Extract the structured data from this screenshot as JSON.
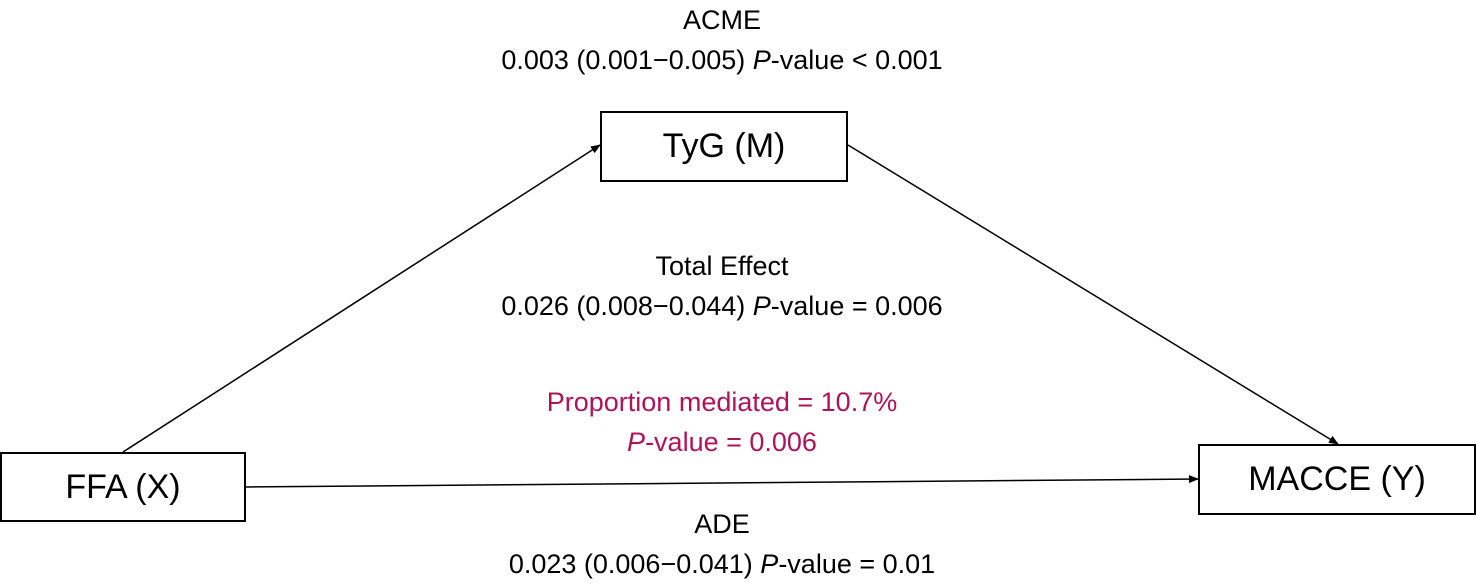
{
  "nodes": {
    "mediator": "TyG (M)",
    "exposure": "FFA (X)",
    "outcome": "MACCE (Y)"
  },
  "acme": {
    "title": "ACME",
    "estimate": "0.003 (0.001−0.005)",
    "p_italic": "P",
    "p_rest": "-value < 0.001"
  },
  "total_effect": {
    "title": "Total Effect",
    "estimate": "0.026 (0.008−0.044)",
    "p_italic": "P",
    "p_rest": "-value = 0.006"
  },
  "proportion": {
    "text": "Proportion mediated = 10.7%",
    "p_italic": "P",
    "p_rest": "-value = 0.006"
  },
  "ade": {
    "title": "ADE",
    "estimate": "0.023 (0.006−0.041)",
    "p_italic": "P",
    "p_rest": "-value = 0.01"
  },
  "colors": {
    "proportion_text": "#b0135a",
    "lines": "#000000"
  }
}
